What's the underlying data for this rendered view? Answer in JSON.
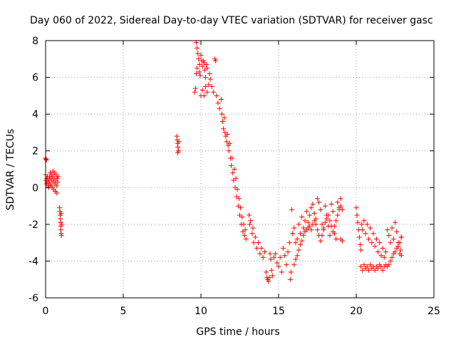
{
  "colors": {
    "series": "#ff0000",
    "grid": "#a0a0a0",
    "axis": "#000000",
    "background": "#ffffff"
  },
  "chart_data": {
    "type": "scatter",
    "title": "Day 060 of 2022, Sidereal Day-to-day VTEC variation (SDTVAR) for receiver gasc",
    "xlabel": "GPS time / hours",
    "ylabel": "SDTVAR / TECUs",
    "xlim": [
      0,
      25
    ],
    "ylim": [
      -6,
      8
    ],
    "xticks": [
      0,
      5,
      10,
      15,
      20,
      25
    ],
    "yticks": [
      -6,
      -4,
      -2,
      0,
      2,
      4,
      6,
      8
    ],
    "grid": true,
    "marker": "+",
    "series": [
      {
        "name": "SDTVAR",
        "points": [
          [
            0.0,
            1.6
          ],
          [
            0.02,
            1.55
          ],
          [
            0.05,
            1.5
          ],
          [
            0.0,
            0.7
          ],
          [
            0.02,
            0.4
          ],
          [
            0.05,
            0.2
          ],
          [
            0.08,
            0.5
          ],
          [
            0.1,
            0.3
          ],
          [
            0.12,
            0.6
          ],
          [
            0.15,
            0.1
          ],
          [
            0.18,
            0.4
          ],
          [
            0.2,
            0.0
          ],
          [
            0.22,
            0.3
          ],
          [
            0.25,
            0.6
          ],
          [
            0.28,
            0.2
          ],
          [
            0.3,
            0.8
          ],
          [
            0.32,
            0.5
          ],
          [
            0.35,
            0.1
          ],
          [
            0.38,
            0.7
          ],
          [
            0.4,
            0.4
          ],
          [
            0.42,
            0.0
          ],
          [
            0.45,
            0.6
          ],
          [
            0.48,
            0.9
          ],
          [
            0.5,
            0.3
          ],
          [
            0.52,
            -0.1
          ],
          [
            0.55,
            0.5
          ],
          [
            0.58,
            0.8
          ],
          [
            0.6,
            0.2
          ],
          [
            0.62,
            -0.2
          ],
          [
            0.65,
            0.4
          ],
          [
            0.68,
            0.7
          ],
          [
            0.7,
            0.1
          ],
          [
            0.72,
            -0.3
          ],
          [
            0.75,
            0.5
          ],
          [
            0.78,
            0.3
          ],
          [
            0.8,
            0.6
          ],
          [
            0.9,
            -1.1
          ],
          [
            0.92,
            -1.3
          ],
          [
            0.94,
            -1.5
          ],
          [
            0.95,
            -1.7
          ],
          [
            0.96,
            -1.9
          ],
          [
            0.97,
            -2.1
          ],
          [
            0.98,
            -2.3
          ],
          [
            1.0,
            -2.5
          ],
          [
            1.02,
            -2.6
          ],
          [
            1.0,
            -1.4
          ],
          [
            1.05,
            -2.0
          ],
          [
            8.45,
            2.8
          ],
          [
            8.47,
            2.6
          ],
          [
            8.5,
            2.4
          ],
          [
            8.52,
            2.2
          ],
          [
            8.55,
            2.0
          ],
          [
            8.58,
            2.5
          ],
          [
            8.5,
            1.9
          ],
          [
            9.6,
            5.2
          ],
          [
            9.65,
            5.4
          ],
          [
            9.7,
            7.9
          ],
          [
            9.75,
            7.6
          ],
          [
            9.8,
            7.3
          ],
          [
            9.85,
            7.0
          ],
          [
            9.9,
            6.7
          ],
          [
            9.75,
            6.5
          ],
          [
            9.7,
            6.2
          ],
          [
            9.9,
            6.3
          ],
          [
            9.95,
            6.1
          ],
          [
            10.0,
            7.2
          ],
          [
            10.05,
            6.9
          ],
          [
            10.1,
            6.6
          ],
          [
            10.15,
            6.9
          ],
          [
            10.2,
            6.8
          ],
          [
            10.25,
            6.4
          ],
          [
            10.3,
            6.0
          ],
          [
            10.35,
            6.7
          ],
          [
            10.4,
            6.5
          ],
          [
            10.0,
            5.0
          ],
          [
            10.1,
            5.3
          ],
          [
            10.2,
            5.0
          ],
          [
            10.3,
            5.5
          ],
          [
            10.4,
            5.2
          ],
          [
            10.5,
            5.6
          ],
          [
            10.55,
            6.2
          ],
          [
            10.6,
            5.9
          ],
          [
            10.7,
            5.5
          ],
          [
            10.8,
            5.2
          ],
          [
            10.9,
            7.0
          ],
          [
            10.95,
            6.9
          ],
          [
            11.0,
            5.0
          ],
          [
            11.1,
            4.6
          ],
          [
            11.2,
            4.3
          ],
          [
            11.3,
            4.8
          ],
          [
            11.35,
            4.0
          ],
          [
            11.4,
            3.6
          ],
          [
            11.45,
            3.2
          ],
          [
            11.5,
            3.8
          ],
          [
            11.55,
            3.0
          ],
          [
            11.6,
            2.8
          ],
          [
            11.65,
            2.5
          ],
          [
            11.7,
            2.9
          ],
          [
            11.75,
            2.3
          ],
          [
            11.8,
            2.0
          ],
          [
            11.85,
            2.4
          ],
          [
            11.9,
            1.6
          ],
          [
            11.95,
            1.2
          ],
          [
            12.0,
            1.6
          ],
          [
            12.05,
            0.8
          ],
          [
            12.1,
            0.4
          ],
          [
            12.15,
            1.0
          ],
          [
            12.2,
            0.0
          ],
          [
            12.25,
            0.5
          ],
          [
            12.3,
            -0.5
          ],
          [
            12.35,
            -0.1
          ],
          [
            12.4,
            -1.0
          ],
          [
            12.45,
            -0.6
          ],
          [
            12.5,
            -1.5
          ],
          [
            12.55,
            -1.1
          ],
          [
            12.6,
            -2.0
          ],
          [
            12.65,
            -1.6
          ],
          [
            12.7,
            -2.4
          ],
          [
            12.75,
            -2.0
          ],
          [
            12.8,
            -2.6
          ],
          [
            12.85,
            -2.3
          ],
          [
            12.9,
            -2.8
          ],
          [
            13.1,
            -1.5
          ],
          [
            13.15,
            -2.0
          ],
          [
            13.2,
            -1.8
          ],
          [
            13.3,
            -2.5
          ],
          [
            13.35,
            -2.2
          ],
          [
            13.4,
            -3.0
          ],
          [
            13.5,
            -2.7
          ],
          [
            13.6,
            -3.3
          ],
          [
            13.7,
            -3.0
          ],
          [
            13.8,
            -3.6
          ],
          [
            13.9,
            -3.3
          ],
          [
            14.0,
            -3.8
          ],
          [
            14.1,
            -3.5
          ],
          [
            14.2,
            -4.6
          ],
          [
            14.25,
            -4.9
          ],
          [
            14.3,
            -5.0
          ],
          [
            14.35,
            -5.1
          ],
          [
            14.4,
            -4.9
          ],
          [
            14.45,
            -3.6
          ],
          [
            14.5,
            -3.9
          ],
          [
            14.55,
            -4.5
          ],
          [
            14.6,
            -4.8
          ],
          [
            14.7,
            -3.8
          ],
          [
            14.8,
            -3.6
          ],
          [
            14.9,
            -4.1
          ],
          [
            15.0,
            -4.3
          ],
          [
            15.1,
            -3.8
          ],
          [
            15.2,
            -4.6
          ],
          [
            15.3,
            -3.3
          ],
          [
            15.4,
            -3.7
          ],
          [
            15.5,
            -4.2
          ],
          [
            15.6,
            -3.5
          ],
          [
            15.7,
            -3.0
          ],
          [
            15.75,
            -5.0
          ],
          [
            15.8,
            -4.6
          ],
          [
            15.85,
            -1.2
          ],
          [
            15.9,
            -2.5
          ],
          [
            16.0,
            -2.2
          ],
          [
            16.1,
            -3.0
          ],
          [
            16.2,
            -2.8
          ],
          [
            16.3,
            -2.0
          ],
          [
            16.4,
            -2.5
          ],
          [
            16.5,
            -1.6
          ],
          [
            16.6,
            -2.2
          ],
          [
            16.7,
            -1.8
          ],
          [
            16.8,
            -1.3
          ],
          [
            16.9,
            -1.9
          ],
          [
            17.0,
            -1.5
          ],
          [
            17.1,
            -1.1
          ],
          [
            17.2,
            -0.9
          ],
          [
            17.3,
            -1.4
          ],
          [
            17.4,
            -1.7
          ],
          [
            17.5,
            -0.6
          ],
          [
            17.6,
            -0.8
          ],
          [
            17.7,
            -1.2
          ],
          [
            17.8,
            -2.0
          ],
          [
            17.9,
            -2.3
          ],
          [
            18.0,
            -1.0
          ],
          [
            18.1,
            -1.5
          ],
          [
            18.2,
            -2.1
          ],
          [
            18.3,
            -2.6
          ],
          [
            18.4,
            -0.9
          ],
          [
            18.5,
            -1.3
          ],
          [
            18.6,
            -2.5
          ],
          [
            18.7,
            -2.8
          ],
          [
            18.8,
            -0.8
          ],
          [
            18.9,
            -1.1
          ],
          [
            19.0,
            -0.6
          ],
          [
            19.1,
            -1.2
          ],
          [
            19.0,
            -2.8
          ],
          [
            19.1,
            -2.9
          ],
          [
            16.0,
            -4.2
          ],
          [
            16.1,
            -3.9
          ],
          [
            16.2,
            -3.7
          ],
          [
            16.3,
            -3.4
          ],
          [
            16.4,
            -3.1
          ],
          [
            16.5,
            -2.9
          ],
          [
            16.6,
            -2.6
          ],
          [
            16.7,
            -2.4
          ],
          [
            16.8,
            -2.3
          ],
          [
            16.9,
            -2.2
          ],
          [
            17.0,
            -2.1
          ],
          [
            17.1,
            -2.3
          ],
          [
            17.2,
            -2.0
          ],
          [
            17.3,
            -1.8
          ],
          [
            17.4,
            -2.0
          ],
          [
            17.5,
            -2.3
          ],
          [
            17.6,
            -2.6
          ],
          [
            17.7,
            -2.9
          ],
          [
            17.8,
            -2.6
          ],
          [
            17.9,
            -2.2
          ],
          [
            18.0,
            -1.9
          ],
          [
            18.1,
            -1.7
          ],
          [
            18.2,
            -1.5
          ],
          [
            18.3,
            -1.8
          ],
          [
            18.4,
            -2.1
          ],
          [
            18.5,
            -2.4
          ],
          [
            18.6,
            -2.1
          ],
          [
            18.7,
            -1.8
          ],
          [
            18.8,
            -1.5
          ],
          [
            18.9,
            -1.2
          ],
          [
            19.0,
            -1.0
          ],
          [
            20.0,
            -1.1
          ],
          [
            20.05,
            -1.5
          ],
          [
            20.1,
            -1.9
          ],
          [
            20.15,
            -2.3
          ],
          [
            20.2,
            -2.7
          ],
          [
            20.25,
            -3.1
          ],
          [
            20.3,
            -3.4
          ],
          [
            20.35,
            -2.0
          ],
          [
            20.4,
            -2.3
          ],
          [
            20.5,
            -1.8
          ],
          [
            20.6,
            -2.5
          ],
          [
            20.7,
            -2.0
          ],
          [
            20.8,
            -2.8
          ],
          [
            20.9,
            -2.2
          ],
          [
            21.0,
            -3.0
          ],
          [
            21.1,
            -2.5
          ],
          [
            21.2,
            -3.2
          ],
          [
            21.3,
            -2.8
          ],
          [
            21.4,
            -3.5
          ],
          [
            21.5,
            -3.0
          ],
          [
            21.6,
            -3.7
          ],
          [
            21.7,
            -3.3
          ],
          [
            21.8,
            -3.8
          ],
          [
            21.9,
            -3.5
          ],
          [
            22.0,
            -2.3
          ],
          [
            22.1,
            -2.6
          ],
          [
            22.2,
            -3.0
          ],
          [
            22.3,
            -2.2
          ],
          [
            22.4,
            -2.8
          ],
          [
            22.5,
            -1.9
          ],
          [
            22.6,
            -2.4
          ],
          [
            22.7,
            -3.0
          ],
          [
            22.8,
            -3.6
          ],
          [
            22.85,
            -3.4
          ],
          [
            22.9,
            -2.7
          ],
          [
            22.9,
            -3.7
          ],
          [
            20.3,
            -4.3
          ],
          [
            20.4,
            -4.5
          ],
          [
            20.5,
            -4.2
          ],
          [
            20.6,
            -4.4
          ],
          [
            20.7,
            -4.3
          ],
          [
            20.8,
            -4.5
          ],
          [
            20.9,
            -4.2
          ],
          [
            21.0,
            -4.4
          ],
          [
            21.1,
            -4.3
          ],
          [
            21.2,
            -4.5
          ],
          [
            21.3,
            -4.3
          ],
          [
            21.4,
            -4.4
          ],
          [
            21.5,
            -4.2
          ],
          [
            21.6,
            -4.3
          ],
          [
            21.7,
            -4.5
          ],
          [
            21.8,
            -4.3
          ],
          [
            21.9,
            -4.2
          ],
          [
            22.0,
            -4.3
          ],
          [
            22.1,
            -4.2
          ],
          [
            22.2,
            -4.0
          ],
          [
            22.3,
            -3.8
          ],
          [
            22.4,
            -3.6
          ],
          [
            22.5,
            -3.5
          ],
          [
            22.6,
            -3.3
          ],
          [
            22.7,
            -3.2
          ],
          [
            22.8,
            -3.0
          ],
          [
            22.9,
            -2.7
          ]
        ]
      }
    ]
  }
}
